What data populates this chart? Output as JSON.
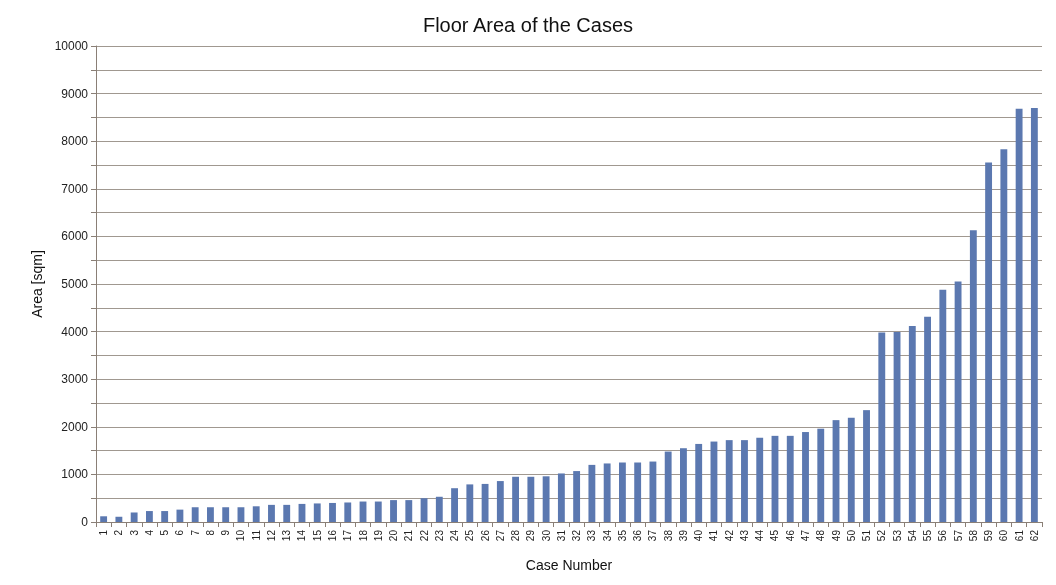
{
  "chart_data": {
    "type": "bar",
    "title": "Floor Area of the Cases",
    "xlabel": "Case Number",
    "ylabel": "Area [sqm]",
    "categories": [
      "1",
      "2",
      "3",
      "4",
      "5",
      "6",
      "7",
      "8",
      "9",
      "10",
      "11",
      "12",
      "13",
      "14",
      "15",
      "16",
      "17",
      "18",
      "19",
      "20",
      "21",
      "22",
      "23",
      "24",
      "25",
      "26",
      "27",
      "28",
      "29",
      "30",
      "31",
      "32",
      "33",
      "34",
      "35",
      "36",
      "37",
      "38",
      "39",
      "40",
      "41",
      "42",
      "43",
      "44",
      "45",
      "46",
      "47",
      "48",
      "49",
      "50",
      "51",
      "52",
      "53",
      "54",
      "55",
      "56",
      "57",
      "58",
      "59",
      "60",
      "61",
      "62"
    ],
    "values": [
      120,
      110,
      200,
      230,
      230,
      260,
      310,
      310,
      310,
      310,
      330,
      360,
      360,
      380,
      390,
      400,
      410,
      430,
      430,
      460,
      460,
      500,
      530,
      710,
      790,
      800,
      860,
      950,
      950,
      960,
      1020,
      1070,
      1200,
      1230,
      1250,
      1250,
      1270,
      1480,
      1550,
      1640,
      1690,
      1720,
      1720,
      1770,
      1810,
      1810,
      1890,
      1960,
      2140,
      2190,
      2350,
      3980,
      3990,
      4120,
      4310,
      4880,
      5050,
      6130,
      7550,
      7830,
      8680,
      8700
    ],
    "color": "#5b78b0",
    "ylim": [
      0,
      10000
    ],
    "yticks": [
      0,
      {
        "value": 500,
        "label": null
      },
      1000,
      {
        "value": 1500,
        "label": null
      },
      2000,
      {
        "value": 2500,
        "label": null
      },
      3000,
      {
        "value": 3500,
        "label": null
      },
      4000,
      {
        "value": 4500,
        "label": null
      },
      5000,
      {
        "value": 5500,
        "label": null
      },
      6000,
      {
        "value": 6500,
        "label": null
      },
      7000,
      {
        "value": 7500,
        "label": null
      },
      8000,
      {
        "value": 8500,
        "label": null
      },
      9000,
      {
        "value": 9500,
        "label": null
      },
      10000
    ],
    "grid": true
  }
}
